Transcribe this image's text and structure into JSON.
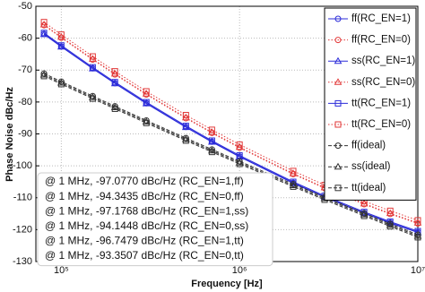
{
  "chart_data": {
    "type": "line",
    "xlabel": "Frequency [Hz]",
    "ylabel": "Phase Noise dBc/Hz",
    "xscale": "log",
    "grid": true,
    "legend": "upper right",
    "xlim": [
      72000,
      10000000
    ],
    "xticks": [
      {
        "value": 100000,
        "label": "10⁵"
      },
      {
        "value": 1000000,
        "label": "10⁶"
      },
      {
        "value": 10000000,
        "label": "10⁷"
      }
    ],
    "ylim": [
      -130,
      -50
    ],
    "yticks": [
      -130,
      -120,
      -110,
      -100,
      -90,
      -80,
      -70,
      -60,
      -50
    ],
    "x": [
      80000,
      100000,
      150000,
      200000,
      300000,
      500000,
      700000,
      1000000,
      2000000,
      3000000,
      5000000,
      7000000,
      10000000
    ],
    "series": [
      {
        "name": "ff(RC_EN=1)",
        "color": "#2b2bd9",
        "marker": "circle",
        "dash": "solid",
        "values": [
          -58.69,
          -62.6,
          -69.45,
          -74.11,
          -80.39,
          -87.83,
          -92.44,
          -97.08,
          -105.35,
          -109.74,
          -114.79,
          -117.83,
          -120.8
        ]
      },
      {
        "name": "ff(RC_EN=0)",
        "color": "#e23a3a",
        "marker": "circle",
        "dash": "dotted",
        "values": [
          -55.95,
          -59.86,
          -66.71,
          -71.37,
          -77.65,
          -85.09,
          -89.7,
          -94.34,
          -102.61,
          -107.0,
          -112.05,
          -115.09,
          -118.06
        ]
      },
      {
        "name": "ss(RC_EN=1)",
        "color": "#2b2bd9",
        "marker": "triangle",
        "dash": "solid",
        "values": [
          -58.79,
          -62.7,
          -69.55,
          -74.21,
          -80.49,
          -87.93,
          -92.54,
          -97.18,
          -105.45,
          -109.84,
          -114.89,
          -117.93,
          -120.9
        ]
      },
      {
        "name": "ss(RC_EN=0)",
        "color": "#e23a3a",
        "marker": "triangle",
        "dash": "dotted",
        "values": [
          -55.75,
          -59.66,
          -66.51,
          -71.17,
          -77.45,
          -84.89,
          -89.5,
          -94.14,
          -102.41,
          -106.8,
          -111.85,
          -114.89,
          -117.86
        ]
      },
      {
        "name": "tt(RC_EN=1)",
        "color": "#2b2bd9",
        "marker": "square",
        "dash": "solid",
        "values": [
          -58.36,
          -62.27,
          -69.12,
          -73.78,
          -80.06,
          -87.5,
          -92.11,
          -96.75,
          -105.02,
          -109.41,
          -114.46,
          -117.5,
          -120.47
        ]
      },
      {
        "name": "tt(RC_EN=0)",
        "color": "#e23a3a",
        "marker": "square",
        "dash": "dotted",
        "values": [
          -54.96,
          -58.87,
          -65.72,
          -70.38,
          -76.66,
          -84.1,
          -88.71,
          -93.35,
          -101.62,
          -106.01,
          -111.06,
          -114.1,
          -117.07
        ]
      },
      {
        "name": "ff(ideal)",
        "color": "#333333",
        "marker": "circle",
        "dash": "dashed",
        "values": [
          -71.07,
          -73.6,
          -78.14,
          -81.33,
          -85.78,
          -91.29,
          -94.86,
          -98.6,
          -105.73,
          -109.82,
          -114.89,
          -118.17,
          -121.6
        ]
      },
      {
        "name": "ss(ideal)",
        "color": "#333333",
        "marker": "triangle",
        "dash": "dashed",
        "values": [
          -71.47,
          -74.0,
          -78.54,
          -81.73,
          -86.18,
          -91.69,
          -95.26,
          -99.0,
          -106.13,
          -110.22,
          -115.29,
          -118.57,
          -122.0
        ]
      },
      {
        "name": "tt(ideal)",
        "color": "#333333",
        "marker": "square",
        "dash": "dashed",
        "values": [
          -71.87,
          -74.4,
          -78.94,
          -82.13,
          -86.58,
          -92.09,
          -95.66,
          -99.4,
          -106.53,
          -110.62,
          -115.69,
          -118.97,
          -122.4
        ]
      }
    ],
    "annotations": [
      "@ 1 MHz, -97.0770 dBc/Hz (RC_EN=1,ff)",
      "@ 1 MHz, -94.3435 dBc/Hz (RC_EN=0,ff)",
      "@ 1 MHz, -97.1768 dBc/Hz (RC_EN=1,ss)",
      "@ 1 MHz, -94.1448 dBc/Hz (RC_EN=0,ss)",
      "@ 1 MHz, -96.7479 dBc/Hz (RC_EN=1,tt)",
      "@ 1 MHz, -93.3507 dBc/Hz (RC_EN=0,tt)"
    ]
  }
}
